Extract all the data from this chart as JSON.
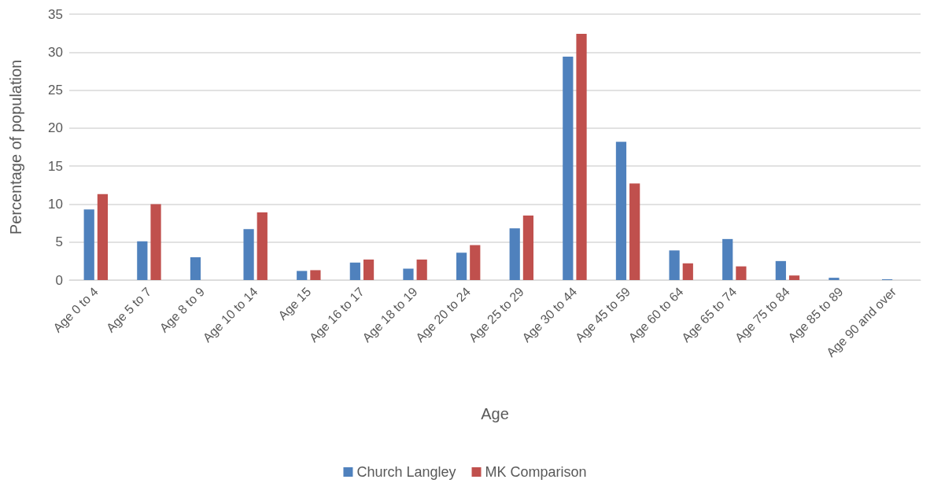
{
  "chart_data": {
    "type": "bar",
    "xlabel": "Age",
    "ylabel": "Percentage of population",
    "categories": [
      "Age 0 to 4",
      "Age 5 to 7",
      "Age 8 to 9",
      "Age 10 to 14",
      "Age 15",
      "Age 16 to 17",
      "Age 18 to 19",
      "Age 20 to 24",
      "Age 25 to 29",
      "Age 30 to 44",
      "Age 45 to 59",
      "Age 60 to 64",
      "Age 65 to 74",
      "Age 75 to 84",
      "Age 85 to 89",
      "Age 90 and over"
    ],
    "series": [
      {
        "name": "Church Langley",
        "color": "#4f81bd",
        "values": [
          9.3,
          5.1,
          3.0,
          6.7,
          1.2,
          2.3,
          1.5,
          3.6,
          6.8,
          29.4,
          18.2,
          3.9,
          5.4,
          2.5,
          0.3,
          0.1
        ]
      },
      {
        "name": "MK Comparison",
        "color": "#c0504d",
        "values": [
          11.3,
          10.0,
          0,
          8.9,
          1.3,
          2.7,
          2.7,
          4.6,
          8.5,
          32.4,
          12.7,
          2.2,
          1.8,
          0.6,
          0,
          0
        ]
      }
    ],
    "ylim": [
      0,
      35
    ],
    "yticks": [
      0,
      5,
      10,
      15,
      20,
      25,
      30,
      35
    ],
    "grid": "y",
    "legend": "bottom"
  }
}
